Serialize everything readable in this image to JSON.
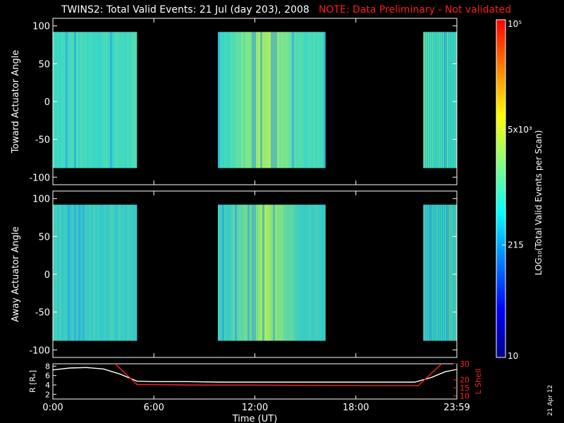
{
  "header": {
    "title": "TWINS2: Total Valid Events: 21 Jul (day 203), 2008",
    "note": "NOTE: Data Preliminary - Not validated"
  },
  "stamp": "21 Apr 12",
  "colorbar": {
    "label": "LOG₁₀(Total Valid Events per Scan)",
    "ticks": [
      "10",
      "215",
      "5x10³",
      "10⁵"
    ],
    "tick_values": [
      10,
      215,
      5000,
      100000
    ],
    "colors": [
      "#00008c",
      "#0000ff",
      "#0080ff",
      "#00ffff",
      "#7fff7f",
      "#ffff00",
      "#ff8000",
      "#ff0000"
    ]
  },
  "time_axis": {
    "label": "Time (UT)",
    "tick_labels": [
      "0:00",
      "6:00",
      "12:00",
      "18:00",
      "23:59"
    ],
    "tick_hours": [
      0,
      6,
      12,
      18,
      24
    ]
  },
  "chart_data": [
    {
      "type": "heatmap",
      "name": "toward",
      "ylabel": "Toward Actuator Angle",
      "xlim_hours": [
        0,
        24
      ],
      "ylim": [
        -110,
        110
      ],
      "yticks": [
        100,
        50,
        0,
        -50,
        -100
      ],
      "data_y_range": [
        -88,
        92
      ],
      "data_time_ranges_hours": [
        [
          0,
          5
        ],
        [
          9.8,
          16.2
        ],
        [
          22.0,
          24
        ]
      ],
      "dominant_color": "#33d6cc",
      "peak_color": "#b4ef5a"
    },
    {
      "type": "heatmap",
      "name": "away",
      "ylabel": "Away Actuator Angle",
      "xlim_hours": [
        0,
        24
      ],
      "ylim": [
        -110,
        110
      ],
      "yticks": [
        100,
        50,
        0,
        -50,
        -100
      ],
      "data_y_range": [
        -88,
        92
      ],
      "data_time_ranges_hours": [
        [
          0,
          5
        ],
        [
          9.8,
          16.2
        ],
        [
          22.0,
          24
        ]
      ],
      "dominant_color": "#2ec8d0",
      "peak_color": "#a6ec60"
    },
    {
      "type": "line",
      "name": "orbit",
      "ylabel_left": "R [Rₑ]",
      "ylabel_right": "L Shell",
      "left_ylim": [
        1,
        8.5
      ],
      "left_yticks": [
        8,
        6,
        4,
        2
      ],
      "right_ylim": [
        8,
        30
      ],
      "right_yticks": [
        30,
        20,
        15,
        10
      ],
      "series": [
        {
          "name": "R",
          "color": "#ffffff",
          "x_hours": [
            0,
            1,
            2,
            3,
            4,
            5,
            6,
            8,
            10,
            12,
            14,
            16,
            18,
            20,
            21.5,
            22.5,
            23.3,
            24
          ],
          "values": [
            7.2,
            7.6,
            7.7,
            7.4,
            6.3,
            4.8,
            4.7,
            4.7,
            4.6,
            4.6,
            4.6,
            4.6,
            4.6,
            4.6,
            4.6,
            5.6,
            6.8,
            7.3
          ]
        },
        {
          "name": "L",
          "color": "#ff2020",
          "x_hours": [
            3.7,
            5.0,
            6,
            8,
            10,
            12,
            14,
            16,
            18,
            20,
            21.7,
            23.1
          ],
          "values": [
            30,
            17,
            17,
            16.8,
            16.7,
            16.7,
            16.6,
            16.5,
            16.4,
            16.3,
            16.3,
            30
          ]
        }
      ]
    }
  ]
}
